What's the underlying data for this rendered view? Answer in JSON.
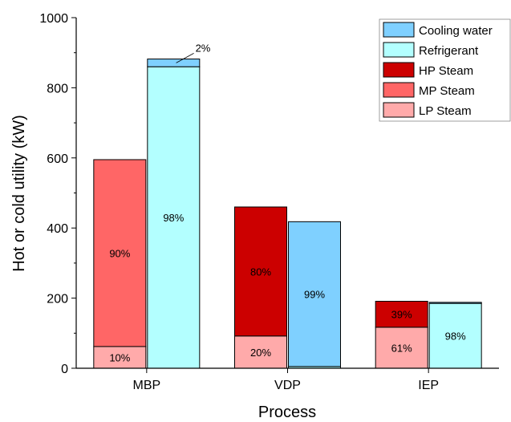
{
  "chart_data": {
    "type": "bar",
    "subtype": "grouped-stacked",
    "title": "",
    "xlabel": "Process",
    "ylabel": "Hot or cold utility (kW)",
    "ylim": [
      0,
      1000
    ],
    "yticks": [
      0,
      200,
      400,
      600,
      800,
      1000
    ],
    "y_minor_step": 100,
    "categories": [
      "MBP",
      "VDP",
      "IEP"
    ],
    "colors": {
      "Cooling water": "#7fd0ff",
      "Refrigerant": "#b3ffff",
      "HP Steam": "#cc0000",
      "MP Steam": "#ff6666",
      "LP Steam": "#ffaaaa"
    },
    "legend": {
      "placement": "top-right",
      "entries": [
        "Cooling water",
        "Refrigerant",
        "HP Steam",
        "MP Steam",
        "LP Steam"
      ]
    },
    "groups": [
      {
        "category": "MBP",
        "bars": [
          {
            "utility": "hot",
            "segments": [
              {
                "series": "LP Steam",
                "value": 62,
                "label": "10%"
              },
              {
                "series": "MP Steam",
                "value": 533,
                "label": "90%"
              }
            ]
          },
          {
            "utility": "cold",
            "segments": [
              {
                "series": "Refrigerant",
                "value": 860,
                "label": "98%"
              },
              {
                "series": "Cooling water",
                "value": 22,
                "label": "2%",
                "callout": true
              }
            ]
          }
        ]
      },
      {
        "category": "VDP",
        "bars": [
          {
            "utility": "hot",
            "segments": [
              {
                "series": "LP Steam",
                "value": 92,
                "label": "20%"
              },
              {
                "series": "HP Steam",
                "value": 368,
                "label": "80%"
              }
            ]
          },
          {
            "utility": "cold",
            "segments": [
              {
                "series": "Refrigerant",
                "value": 5,
                "label": ""
              },
              {
                "series": "Cooling water",
                "value": 413,
                "label": "99%"
              }
            ]
          }
        ]
      },
      {
        "category": "IEP",
        "bars": [
          {
            "utility": "hot",
            "segments": [
              {
                "series": "LP Steam",
                "value": 117,
                "label": "61%"
              },
              {
                "series": "HP Steam",
                "value": 74,
                "label": "39%"
              }
            ]
          },
          {
            "utility": "cold",
            "segments": [
              {
                "series": "Refrigerant",
                "value": 185,
                "label": "98%"
              },
              {
                "series": "Cooling water",
                "value": 3,
                "label": ""
              }
            ]
          }
        ]
      }
    ]
  }
}
